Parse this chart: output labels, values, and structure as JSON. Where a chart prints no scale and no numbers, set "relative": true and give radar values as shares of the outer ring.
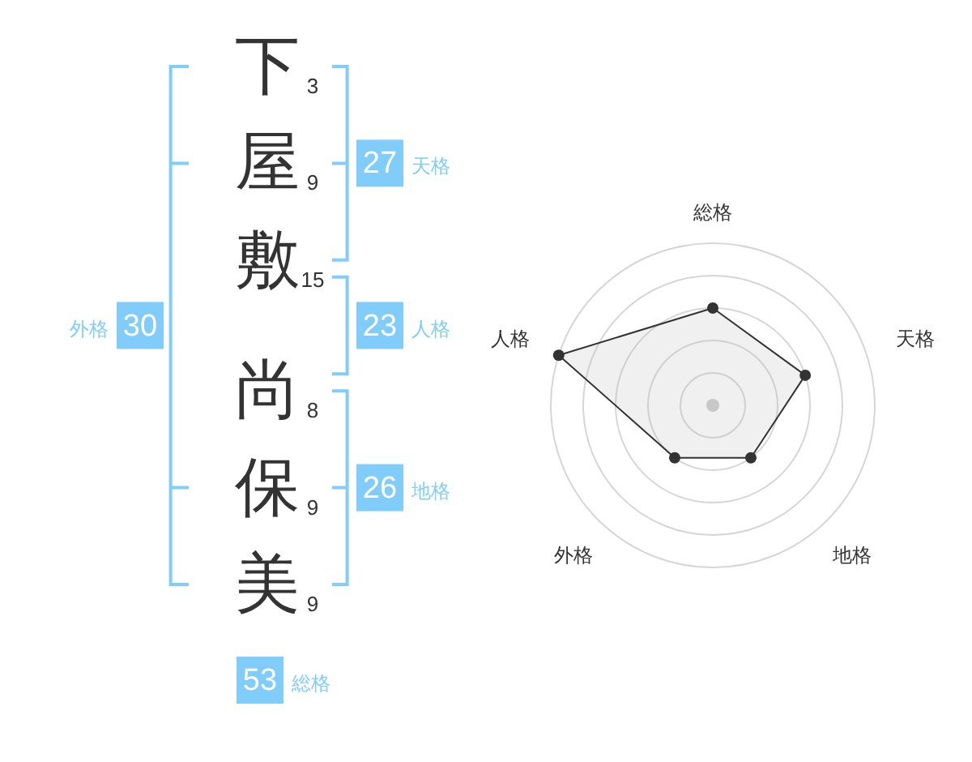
{
  "chart_data": [
    {
      "type": "other",
      "categories": [
        "下",
        "屋",
        "敷",
        "尚",
        "保",
        "美"
      ],
      "values": [
        3,
        9,
        15,
        8,
        9,
        9
      ],
      "data_labels": true
    },
    {
      "type": "other",
      "categories": [
        "天格",
        "人格",
        "地格",
        "外格",
        "総格"
      ],
      "values": [
        27,
        23,
        26,
        30,
        53
      ],
      "color": "#80cdfc",
      "data_labels": true
    },
    {
      "type": "radar",
      "categories": [
        "総格",
        "天格",
        "地格",
        "外格",
        "人格"
      ],
      "relative": true,
      "grid": true,
      "marker": "circle",
      "series": [
        {
          "color": "#333333",
          "values": [
            0.6,
            0.6,
            0.4,
            0.4,
            1.0
          ]
        }
      ]
    }
  ]
}
